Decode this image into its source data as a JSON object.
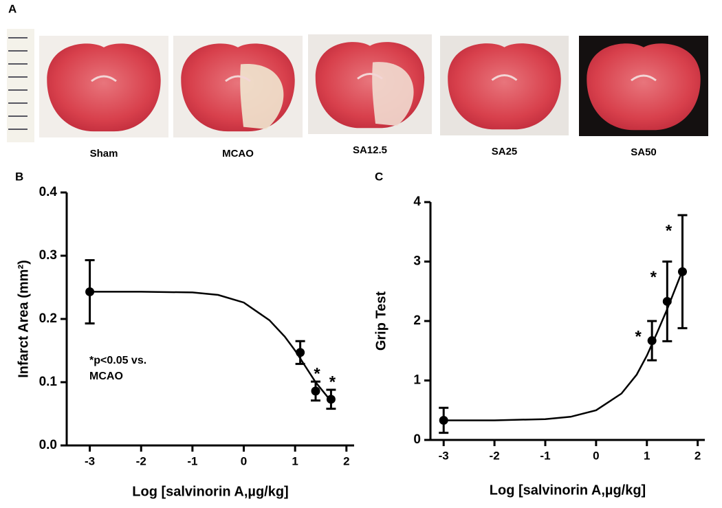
{
  "panel_a": {
    "label": "A",
    "images": [
      "Sham",
      "MCAO",
      "SA12.5",
      "SA25",
      "SA50"
    ]
  },
  "chart_data": [
    {
      "type": "scatter",
      "panel_label": "B",
      "xlabel": "Log [salvinorin A,µg/kg]",
      "ylabel": "Infarct Area (mm²)",
      "annotation": [
        "*p<0.05 vs.",
        "MCAO"
      ],
      "points": {
        "x": [
          -3,
          1.1,
          1.4,
          1.7
        ],
        "values": [
          0.243,
          0.147,
          0.086,
          0.073
        ],
        "errors": [
          0.05,
          0.018,
          0.015,
          0.015
        ],
        "sig_labels": [
          null,
          null,
          "*",
          "*"
        ]
      },
      "fit": {
        "x": [
          -3,
          -2,
          -1,
          -0.5,
          0,
          0.5,
          0.8,
          1,
          1.2,
          1.4,
          1.7
        ],
        "values": [
          0.243,
          0.243,
          0.242,
          0.238,
          0.226,
          0.198,
          0.172,
          0.15,
          0.125,
          0.1,
          0.07
        ]
      },
      "color": "#000000",
      "xlim": [
        -3.45,
        2.15
      ],
      "ylim": [
        0,
        0.4
      ],
      "xticks": [
        -3,
        -2,
        -1,
        0,
        1,
        2
      ],
      "yticks": [
        {
          "value": 0,
          "label": "0.0"
        },
        0.1,
        0.2,
        0.3,
        0.4
      ]
    },
    {
      "type": "scatter",
      "panel_label": "C",
      "xlabel": "Log [salvinorin A,µg/kg]",
      "ylabel": "Grip Test",
      "points": {
        "x": [
          -3,
          1.1,
          1.4,
          1.7
        ],
        "values": [
          0.33,
          1.67,
          2.33,
          2.83
        ],
        "errors": [
          0.21,
          0.33,
          0.67,
          0.95
        ],
        "sig_labels": [
          null,
          "*",
          "*",
          "*"
        ]
      },
      "fit": {
        "x": [
          -3,
          -2,
          -1,
          -0.5,
          0,
          0.5,
          0.8,
          1,
          1.2,
          1.4,
          1.7
        ],
        "values": [
          0.33,
          0.33,
          0.35,
          0.39,
          0.5,
          0.78,
          1.1,
          1.42,
          1.8,
          2.2,
          2.85
        ]
      },
      "color": "#000000",
      "xlim": [
        -3.26,
        2.14
      ],
      "ylim": [
        0,
        4
      ],
      "xticks": [
        -3,
        -2,
        -1,
        0,
        1,
        2
      ],
      "yticks": [
        0,
        1,
        2,
        3,
        4
      ]
    }
  ]
}
